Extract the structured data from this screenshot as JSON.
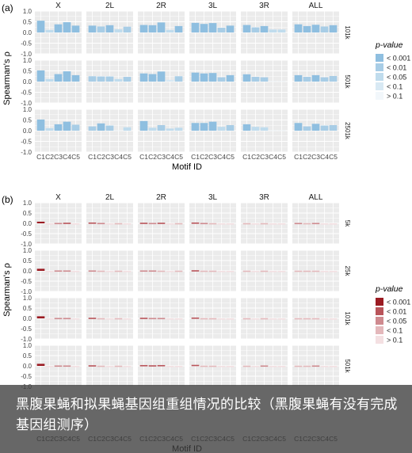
{
  "caption": "黑腹果蝇和拟果蝇基因组重组情况的比较（黑腹果蝇有没有完成基因组测序）",
  "chart_data": [
    {
      "panel_label": "(a)",
      "type": "bar",
      "ylabel": "Spearman's ρ",
      "xlabel": "Motif ID",
      "ylim": [
        -1.0,
        1.0
      ],
      "yticks": [
        "1.0",
        "0.5",
        "0.0",
        "-0.5",
        "-1.0"
      ],
      "grid": true,
      "groups": [
        "X",
        "2L",
        "2R",
        "3L",
        "3R",
        "ALL"
      ],
      "categories": [
        "C1",
        "C2",
        "C3",
        "C4",
        "C5"
      ],
      "rows": [
        {
          "label": "101k",
          "values": {
            "X": [
              0.55,
              0.12,
              0.38,
              0.48,
              0.32
            ],
            "2L": [
              0.32,
              0.28,
              0.34,
              0.15,
              0.27
            ],
            "2R": [
              0.35,
              0.34,
              0.47,
              0.12,
              0.3
            ],
            "3L": [
              0.45,
              0.4,
              0.44,
              0.22,
              0.32
            ],
            "3R": [
              0.35,
              0.24,
              0.3,
              0.14,
              0.14
            ],
            "ALL": [
              0.38,
              0.3,
              0.36,
              0.28,
              0.34
            ]
          }
        },
        {
          "label": "501k",
          "values": {
            "X": [
              0.52,
              0.12,
              0.35,
              0.48,
              0.3
            ],
            "2L": [
              0.25,
              0.24,
              0.24,
              0.12,
              0.22
            ],
            "2R": [
              0.38,
              0.35,
              0.47,
              0.08,
              0.25
            ],
            "3L": [
              0.42,
              0.38,
              0.4,
              0.2,
              0.3
            ],
            "3R": [
              0.34,
              0.22,
              0.2,
              0.02,
              0.02
            ],
            "ALL": [
              0.3,
              0.22,
              0.3,
              0.2,
              0.26
            ]
          }
        },
        {
          "label": "2501k",
          "values": {
            "X": [
              0.52,
              0.12,
              0.3,
              0.42,
              0.28
            ],
            "2L": [
              0.2,
              0.34,
              0.24,
              0.02,
              0.16
            ],
            "2R": [
              0.45,
              0.14,
              0.26,
              0.1,
              0.14
            ],
            "3L": [
              0.36,
              0.36,
              0.42,
              0.18,
              0.26
            ],
            "3R": [
              0.3,
              0.18,
              0.16,
              0.02,
              0.02
            ],
            "ALL": [
              0.36,
              0.2,
              0.32,
              0.24,
              0.26
            ]
          }
        }
      ],
      "legend": {
        "title": "p-value",
        "position": "right",
        "entries": [
          {
            "label": "< 0.001",
            "color": "#8fbfe0"
          },
          {
            "label": "< 0.01",
            "color": "#a8cde6"
          },
          {
            "label": "< 0.05",
            "color": "#c0dced"
          },
          {
            "label": "< 0.1",
            "color": "#d8e9f4"
          },
          {
            "label": "> 0.1",
            "color": "#f2f7fb"
          }
        ]
      }
    },
    {
      "panel_label": "(b)",
      "type": "bar",
      "ylabel": "Spearman's ρ",
      "xlabel": "Motif ID",
      "ylim": [
        -1.0,
        1.0
      ],
      "yticks": [
        "1.0",
        "0.5",
        "0.0",
        "-0.5",
        "-1.0"
      ],
      "grid": true,
      "groups": [
        "X",
        "2L",
        "2R",
        "3L",
        "3R",
        "ALL"
      ],
      "categories": [
        "C1",
        "C2",
        "C3",
        "C4",
        "C5"
      ],
      "rows": [
        {
          "label": "5k",
          "values": {
            "X": [
              0.08,
              0.0,
              0.02,
              0.03,
              0.0
            ],
            "2L": [
              0.04,
              0.02,
              0.0,
              0.01,
              0.0
            ],
            "2R": [
              0.03,
              0.02,
              0.03,
              0.0,
              0.01
            ],
            "3L": [
              0.04,
              0.02,
              0.01,
              0.0,
              0.0
            ],
            "3R": [
              0.01,
              0.0,
              0.01,
              0.0,
              0.0
            ],
            "ALL": [
              0.02,
              0.01,
              0.02,
              0.0,
              0.0
            ]
          }
        },
        {
          "label": "25k",
          "values": {
            "X": [
              0.1,
              0.0,
              0.02,
              0.02,
              0.0
            ],
            "2L": [
              0.02,
              0.01,
              0.0,
              0.01,
              0.0
            ],
            "2R": [
              0.02,
              0.02,
              0.01,
              0.0,
              0.01
            ],
            "3L": [
              0.03,
              0.01,
              0.01,
              0.0,
              0.0
            ],
            "3R": [
              0.01,
              0.0,
              0.01,
              0.0,
              0.0
            ],
            "ALL": [
              0.01,
              0.01,
              0.01,
              0.0,
              0.0
            ]
          }
        },
        {
          "label": "101k",
          "values": {
            "X": [
              0.1,
              0.0,
              0.02,
              0.02,
              0.0
            ],
            "2L": [
              0.03,
              0.01,
              0.0,
              0.01,
              0.0
            ],
            "2R": [
              0.03,
              0.02,
              0.02,
              0.0,
              0.0
            ],
            "3L": [
              0.04,
              0.01,
              0.01,
              0.0,
              0.0
            ],
            "3R": [
              0.01,
              0.0,
              0.01,
              0.0,
              0.0
            ],
            "ALL": [
              0.01,
              0.01,
              0.01,
              0.0,
              0.0
            ]
          }
        },
        {
          "label": "501k",
          "values": {
            "X": [
              0.1,
              0.0,
              0.02,
              0.02,
              0.0
            ],
            "2L": [
              0.03,
              0.01,
              0.0,
              0.01,
              0.0
            ],
            "2R": [
              0.04,
              0.03,
              0.04,
              0.0,
              0.0
            ],
            "3L": [
              0.05,
              0.01,
              0.01,
              0.0,
              0.0
            ],
            "3R": [
              0.01,
              0.0,
              0.02,
              0.0,
              0.0
            ],
            "ALL": [
              0.01,
              0.01,
              0.02,
              0.0,
              0.0
            ]
          }
        }
      ],
      "legend": {
        "title": "p-value",
        "position": "right",
        "entries": [
          {
            "label": "< 0.001",
            "color": "#9b1b22"
          },
          {
            "label": "< 0.01",
            "color": "#b9545a"
          },
          {
            "label": "< 0.05",
            "color": "#cf8a8f"
          },
          {
            "label": "< 0.1",
            "color": "#e4b8bb"
          },
          {
            "label": "> 0.1",
            "color": "#f4e0e2"
          }
        ]
      }
    }
  ]
}
